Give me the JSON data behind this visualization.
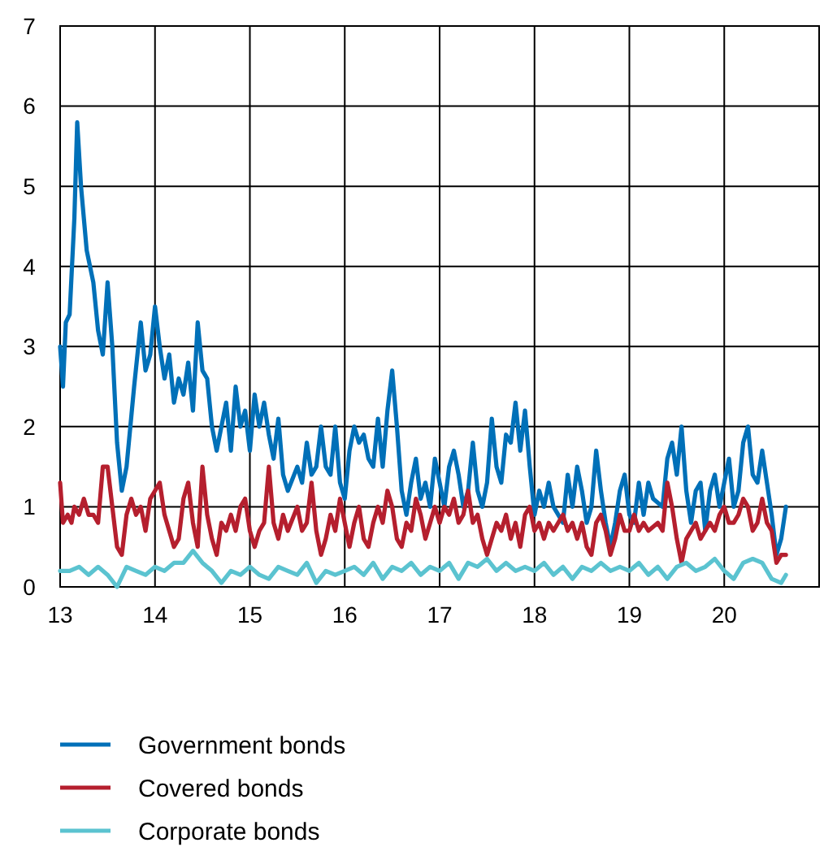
{
  "chart_data": {
    "type": "line",
    "xlim": [
      13,
      21
    ],
    "xticks": [
      13,
      14,
      15,
      16,
      17,
      18,
      19,
      20
    ],
    "ylim": [
      0,
      7
    ],
    "yticks": [
      0,
      1,
      2,
      3,
      4,
      5,
      6,
      7
    ],
    "grid": true,
    "legend": "bottom",
    "marker": "none",
    "line_style": "solid",
    "series": [
      {
        "name": "Government bonds",
        "color": "#0070b8",
        "x": [
          13.0,
          13.03,
          13.06,
          13.1,
          13.15,
          13.18,
          13.22,
          13.28,
          13.35,
          13.4,
          13.45,
          13.5,
          13.55,
          13.6,
          13.65,
          13.7,
          13.78,
          13.85,
          13.9,
          13.95,
          14.0,
          14.05,
          14.1,
          14.15,
          14.2,
          14.25,
          14.3,
          14.35,
          14.4,
          14.45,
          14.5,
          14.55,
          14.6,
          14.65,
          14.7,
          14.75,
          14.8,
          14.85,
          14.9,
          14.95,
          15.0,
          15.05,
          15.1,
          15.15,
          15.2,
          15.25,
          15.3,
          15.35,
          15.4,
          15.5,
          15.55,
          15.6,
          15.65,
          15.7,
          15.75,
          15.8,
          15.85,
          15.9,
          15.95,
          16.0,
          16.05,
          16.1,
          16.15,
          16.2,
          16.25,
          16.3,
          16.35,
          16.4,
          16.45,
          16.5,
          16.55,
          16.6,
          16.65,
          16.7,
          16.75,
          16.8,
          16.85,
          16.9,
          16.95,
          17.0,
          17.05,
          17.1,
          17.15,
          17.2,
          17.25,
          17.3,
          17.35,
          17.4,
          17.45,
          17.5,
          17.55,
          17.6,
          17.65,
          17.7,
          17.75,
          17.8,
          17.85,
          17.9,
          17.95,
          18.0,
          18.05,
          18.1,
          18.15,
          18.2,
          18.3,
          18.35,
          18.4,
          18.45,
          18.5,
          18.55,
          18.6,
          18.65,
          18.7,
          18.75,
          18.8,
          18.85,
          18.9,
          18.95,
          19.0,
          19.05,
          19.1,
          19.15,
          19.2,
          19.25,
          19.35,
          19.4,
          19.45,
          19.5,
          19.55,
          19.6,
          19.65,
          19.7,
          19.75,
          19.8,
          19.85,
          19.9,
          19.95,
          20.0,
          20.05,
          20.1,
          20.15,
          20.2,
          20.25,
          20.3,
          20.35,
          20.4,
          20.45,
          20.5,
          20.55,
          20.6,
          20.65
        ],
        "values": [
          3.0,
          2.5,
          3.3,
          3.4,
          4.6,
          5.8,
          5.0,
          4.2,
          3.8,
          3.2,
          2.9,
          3.8,
          3.0,
          1.8,
          1.2,
          1.5,
          2.5,
          3.3,
          2.7,
          2.9,
          3.5,
          3.0,
          2.6,
          2.9,
          2.3,
          2.6,
          2.4,
          2.8,
          2.2,
          3.3,
          2.7,
          2.6,
          2.0,
          1.7,
          2.0,
          2.3,
          1.7,
          2.5,
          2.0,
          2.2,
          1.7,
          2.4,
          2.0,
          2.3,
          1.9,
          1.6,
          2.1,
          1.4,
          1.2,
          1.5,
          1.3,
          1.8,
          1.4,
          1.5,
          2.0,
          1.5,
          1.4,
          2.0,
          1.3,
          1.1,
          1.7,
          2.0,
          1.8,
          1.9,
          1.6,
          1.5,
          2.1,
          1.5,
          2.2,
          2.7,
          2.0,
          1.2,
          0.9,
          1.3,
          1.6,
          1.1,
          1.3,
          1.0,
          1.6,
          1.3,
          1.0,
          1.5,
          1.7,
          1.4,
          1.0,
          1.2,
          1.8,
          1.2,
          1.0,
          1.3,
          2.1,
          1.5,
          1.3,
          1.9,
          1.8,
          2.3,
          1.7,
          2.2,
          1.5,
          0.9,
          1.2,
          1.0,
          1.3,
          1.0,
          0.8,
          1.4,
          1.0,
          1.5,
          1.2,
          0.8,
          1.0,
          1.7,
          1.2,
          0.8,
          0.5,
          0.8,
          1.2,
          1.4,
          0.9,
          0.8,
          1.3,
          0.9,
          1.3,
          1.1,
          1.0,
          1.6,
          1.8,
          1.4,
          2.0,
          1.2,
          0.8,
          1.2,
          1.3,
          0.7,
          1.2,
          1.4,
          1.0,
          1.3,
          1.6,
          1.0,
          1.2,
          1.8,
          2.0,
          1.4,
          1.3,
          1.7,
          1.3,
          0.9,
          0.4,
          0.6,
          1.0
        ]
      },
      {
        "name": "Covered bonds",
        "color": "#b51f2e",
        "x": [
          13.0,
          13.03,
          13.08,
          13.12,
          13.15,
          13.2,
          13.25,
          13.3,
          13.35,
          13.4,
          13.45,
          13.5,
          13.55,
          13.6,
          13.65,
          13.7,
          13.75,
          13.8,
          13.85,
          13.9,
          13.95,
          14.0,
          14.05,
          14.1,
          14.15,
          14.2,
          14.25,
          14.3,
          14.35,
          14.4,
          14.45,
          14.5,
          14.55,
          14.6,
          14.65,
          14.7,
          14.75,
          14.8,
          14.85,
          14.9,
          14.95,
          15.0,
          15.05,
          15.1,
          15.15,
          15.2,
          15.25,
          15.3,
          15.35,
          15.4,
          15.5,
          15.55,
          15.6,
          15.65,
          15.7,
          15.75,
          15.8,
          15.85,
          15.9,
          15.95,
          16.0,
          16.05,
          16.1,
          16.15,
          16.2,
          16.25,
          16.3,
          16.35,
          16.4,
          16.45,
          16.5,
          16.55,
          16.6,
          16.65,
          16.7,
          16.75,
          16.8,
          16.85,
          16.9,
          16.95,
          17.0,
          17.05,
          17.1,
          17.15,
          17.2,
          17.25,
          17.3,
          17.35,
          17.4,
          17.45,
          17.5,
          17.55,
          17.6,
          17.65,
          17.7,
          17.75,
          17.8,
          17.85,
          17.9,
          17.95,
          18.0,
          18.05,
          18.1,
          18.15,
          18.2,
          18.3,
          18.35,
          18.4,
          18.45,
          18.5,
          18.55,
          18.6,
          18.65,
          18.7,
          18.75,
          18.8,
          18.85,
          18.9,
          18.95,
          19.0,
          19.05,
          19.1,
          19.15,
          19.2,
          19.3,
          19.35,
          19.4,
          19.45,
          19.5,
          19.55,
          19.6,
          19.65,
          19.7,
          19.75,
          19.8,
          19.85,
          19.9,
          19.95,
          20.0,
          20.05,
          20.1,
          20.15,
          20.2,
          20.25,
          20.3,
          20.35,
          20.4,
          20.45,
          20.5,
          20.55,
          20.6,
          20.65
        ],
        "values": [
          1.3,
          0.8,
          0.9,
          0.8,
          1.0,
          0.9,
          1.1,
          0.9,
          0.9,
          0.8,
          1.5,
          1.5,
          1.0,
          0.5,
          0.4,
          0.9,
          1.1,
          0.9,
          1.0,
          0.7,
          1.1,
          1.2,
          1.3,
          0.9,
          0.7,
          0.5,
          0.6,
          1.1,
          1.3,
          0.8,
          0.5,
          1.5,
          0.9,
          0.6,
          0.4,
          0.8,
          0.7,
          0.9,
          0.7,
          1.0,
          1.1,
          0.7,
          0.5,
          0.7,
          0.8,
          1.5,
          0.8,
          0.6,
          0.9,
          0.7,
          1.0,
          0.7,
          0.8,
          1.3,
          0.7,
          0.4,
          0.6,
          0.9,
          0.7,
          1.1,
          0.8,
          0.5,
          0.8,
          1.0,
          0.6,
          0.5,
          0.8,
          1.0,
          0.8,
          1.2,
          1.0,
          0.6,
          0.5,
          0.8,
          0.7,
          1.1,
          0.9,
          0.6,
          0.8,
          1.0,
          0.8,
          1.0,
          0.9,
          1.1,
          0.8,
          0.9,
          1.2,
          0.8,
          0.9,
          0.6,
          0.4,
          0.6,
          0.8,
          0.7,
          0.9,
          0.6,
          0.8,
          0.5,
          0.9,
          1.0,
          0.7,
          0.8,
          0.6,
          0.8,
          0.7,
          0.9,
          0.7,
          0.8,
          0.6,
          0.8,
          0.5,
          0.4,
          0.8,
          0.9,
          0.7,
          0.4,
          0.6,
          0.9,
          0.7,
          0.7,
          0.9,
          0.7,
          0.8,
          0.7,
          0.8,
          0.7,
          1.3,
          1.0,
          0.6,
          0.3,
          0.6,
          0.7,
          0.8,
          0.6,
          0.7,
          0.8,
          0.7,
          0.9,
          1.0,
          0.8,
          0.8,
          0.9,
          1.1,
          1.0,
          0.7,
          0.8,
          1.1,
          0.8,
          0.7,
          0.3,
          0.4,
          0.4
        ]
      },
      {
        "name": "Corporate bonds",
        "color": "#5bc3d0",
        "x": [
          13.0,
          13.1,
          13.2,
          13.3,
          13.4,
          13.5,
          13.6,
          13.7,
          13.8,
          13.9,
          14.0,
          14.1,
          14.2,
          14.3,
          14.4,
          14.5,
          14.6,
          14.7,
          14.8,
          14.9,
          15.0,
          15.1,
          15.2,
          15.3,
          15.4,
          15.5,
          15.6,
          15.7,
          15.8,
          15.9,
          16.0,
          16.1,
          16.2,
          16.3,
          16.4,
          16.5,
          16.6,
          16.7,
          16.8,
          16.9,
          17.0,
          17.1,
          17.2,
          17.3,
          17.4,
          17.5,
          17.6,
          17.7,
          17.8,
          17.9,
          18.0,
          18.1,
          18.2,
          18.3,
          18.4,
          18.5,
          18.6,
          18.7,
          18.8,
          18.9,
          19.0,
          19.1,
          19.2,
          19.3,
          19.4,
          19.5,
          19.6,
          19.7,
          19.8,
          19.9,
          20.0,
          20.1,
          20.2,
          20.3,
          20.4,
          20.5,
          20.6,
          20.65
        ],
        "values": [
          0.2,
          0.2,
          0.25,
          0.15,
          0.25,
          0.15,
          0.0,
          0.25,
          0.2,
          0.15,
          0.25,
          0.2,
          0.3,
          0.3,
          0.45,
          0.3,
          0.2,
          0.05,
          0.2,
          0.15,
          0.25,
          0.15,
          0.1,
          0.25,
          0.2,
          0.15,
          0.3,
          0.05,
          0.2,
          0.15,
          0.2,
          0.25,
          0.15,
          0.3,
          0.1,
          0.25,
          0.2,
          0.3,
          0.15,
          0.25,
          0.2,
          0.3,
          0.1,
          0.3,
          0.25,
          0.35,
          0.2,
          0.3,
          0.2,
          0.25,
          0.2,
          0.3,
          0.15,
          0.25,
          0.1,
          0.25,
          0.2,
          0.3,
          0.2,
          0.25,
          0.2,
          0.3,
          0.15,
          0.25,
          0.1,
          0.25,
          0.3,
          0.2,
          0.25,
          0.35,
          0.2,
          0.1,
          0.3,
          0.35,
          0.3,
          0.1,
          0.05,
          0.15
        ]
      }
    ]
  }
}
